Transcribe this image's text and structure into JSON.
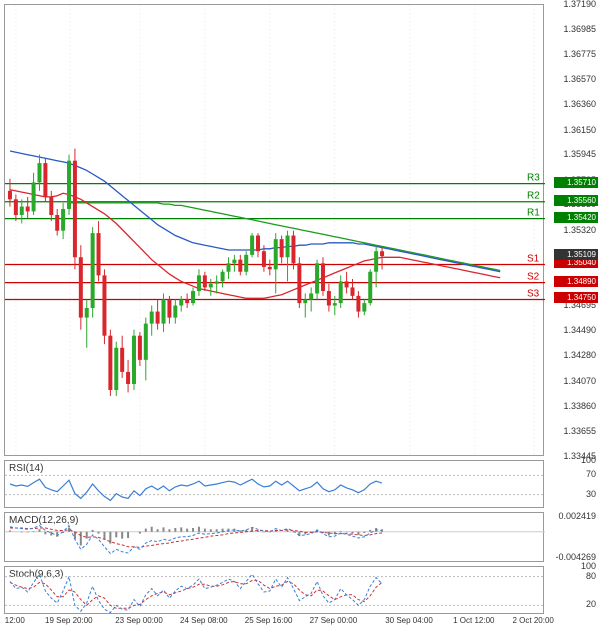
{
  "main": {
    "ylim": [
      1.33445,
      1.3719
    ],
    "yticks": [
      1.33445,
      1.33655,
      1.3386,
      1.3407,
      1.3428,
      1.3449,
      1.34695,
      1.34905,
      1.35115,
      1.3532,
      1.3553,
      1.35735,
      1.35945,
      1.3615,
      1.3636,
      1.3657,
      1.36775,
      1.36985,
      1.3719
    ],
    "last_price": 1.35109,
    "last_tag_color": "#333333",
    "pivots": {
      "R3": {
        "value": 1.3571,
        "color": "#008000"
      },
      "R2": {
        "value": 1.3556,
        "color": "#008000"
      },
      "R1": {
        "value": 1.3542,
        "color": "#008000"
      },
      "S1": {
        "value": 1.3504,
        "color": "#cc0000"
      },
      "S2": {
        "value": 1.3489,
        "color": "#cc0000"
      },
      "S3": {
        "value": 1.3475,
        "color": "#cc0000"
      }
    },
    "ma_red": [
      1.3566,
      1.3565,
      1.3564,
      1.3563,
      1.3562,
      1.3561,
      1.356,
      1.356,
      1.3561,
      1.3563,
      1.3562,
      1.356,
      1.3558,
      1.3555,
      1.3552,
      1.3549,
      1.3546,
      1.3542,
      1.3538,
      1.3533,
      1.3528,
      1.3523,
      1.3518,
      1.3513,
      1.3508,
      1.3504,
      1.35,
      1.3496,
      1.3493,
      1.349,
      1.3488,
      1.3486,
      1.3484,
      1.3483,
      1.3482,
      1.3481,
      1.348,
      1.3479,
      1.3478,
      1.3477,
      1.3476,
      1.3476,
      1.3476,
      1.3476,
      1.3477,
      1.3478,
      1.3479,
      1.3481,
      1.3483,
      1.3485,
      1.3487,
      1.3489,
      1.3491,
      1.3493,
      1.3495,
      1.3497,
      1.3499,
      1.3501,
      1.3503,
      1.3505,
      1.3507,
      1.3508,
      1.3509,
      1.351,
      1.351,
      1.351,
      1.351,
      1.3509,
      1.3508,
      1.3507,
      1.3506,
      1.3505,
      1.3504,
      1.3503,
      1.3502,
      1.3501,
      1.35,
      1.3499,
      1.3498,
      1.3497,
      1.3496,
      1.3495,
      1.3494,
      1.3493
    ],
    "ma_blue": [
      1.3598,
      1.3597,
      1.3596,
      1.3595,
      1.3594,
      1.3593,
      1.3592,
      1.3591,
      1.359,
      1.3589,
      1.3588,
      1.3586,
      1.3584,
      1.3582,
      1.3579,
      1.3576,
      1.3573,
      1.3569,
      1.3565,
      1.3561,
      1.3557,
      1.3553,
      1.3549,
      1.3545,
      1.3541,
      1.3537,
      1.3534,
      1.3531,
      1.3528,
      1.3526,
      1.3524,
      1.3522,
      1.3521,
      1.352,
      1.3519,
      1.3518,
      1.3517,
      1.3516,
      1.3516,
      1.3516,
      1.3516,
      1.3516,
      1.3516,
      1.3517,
      1.3517,
      1.3518,
      1.3518,
      1.3519,
      1.3519,
      1.352,
      1.352,
      1.3521,
      1.3521,
      1.3521,
      1.3522,
      1.3522,
      1.3522,
      1.3522,
      1.3522,
      1.3521,
      1.3521,
      1.352,
      1.3519,
      1.3518,
      1.3517,
      1.3516,
      1.3515,
      1.3514,
      1.3513,
      1.3512,
      1.3511,
      1.351,
      1.3509,
      1.3508,
      1.3507,
      1.3506,
      1.3505,
      1.3504,
      1.3503,
      1.3502,
      1.3501,
      1.35,
      1.3499,
      1.3498
    ],
    "ma_green": [
      1.3555,
      1.3555,
      1.3555,
      1.3555,
      1.3555,
      1.3555,
      1.3555,
      1.3555,
      1.3555,
      1.3555,
      1.3555,
      1.3555,
      1.3555,
      1.3555,
      1.3555,
      1.3555,
      1.3554,
      1.3554,
      1.3553,
      1.3553,
      1.3552,
      1.3551,
      1.355,
      1.3549,
      1.3548,
      1.3547,
      1.3546,
      1.3545,
      1.3544,
      1.3543,
      1.3542,
      1.3541,
      1.354,
      1.3539,
      1.3538,
      1.3537,
      1.3536,
      1.3535,
      1.3534,
      1.3533,
      1.3532,
      1.3531,
      1.353,
      1.3529,
      1.3528,
      1.3527,
      1.3526,
      1.3525,
      1.3524,
      1.3523,
      1.3522,
      1.3521,
      1.352,
      1.3519,
      1.3518,
      1.3517,
      1.3516,
      1.3515,
      1.3514,
      1.3513,
      1.3512,
      1.3511,
      1.351,
      1.3509,
      1.3508,
      1.3507,
      1.3506,
      1.3505,
      1.3504,
      1.3503,
      1.3502,
      1.3501,
      1.35,
      1.3499
    ],
    "candles": [
      {
        "o": 1.3565,
        "h": 1.3575,
        "l": 1.3552,
        "c": 1.3558,
        "up": false
      },
      {
        "o": 1.3558,
        "h": 1.3562,
        "l": 1.354,
        "c": 1.3545,
        "up": false
      },
      {
        "o": 1.3545,
        "h": 1.3558,
        "l": 1.3538,
        "c": 1.3552,
        "up": true
      },
      {
        "o": 1.3552,
        "h": 1.356,
        "l": 1.3542,
        "c": 1.3548,
        "up": false
      },
      {
        "o": 1.3548,
        "h": 1.358,
        "l": 1.3545,
        "c": 1.3572,
        "up": true
      },
      {
        "o": 1.3572,
        "h": 1.3595,
        "l": 1.3565,
        "c": 1.3588,
        "up": true
      },
      {
        "o": 1.3588,
        "h": 1.3592,
        "l": 1.3556,
        "c": 1.356,
        "up": false
      },
      {
        "o": 1.356,
        "h": 1.3565,
        "l": 1.354,
        "c": 1.3545,
        "up": false
      },
      {
        "o": 1.3545,
        "h": 1.355,
        "l": 1.3528,
        "c": 1.3532,
        "up": false
      },
      {
        "o": 1.3532,
        "h": 1.3555,
        "l": 1.3525,
        "c": 1.355,
        "up": true
      },
      {
        "o": 1.355,
        "h": 1.3595,
        "l": 1.3545,
        "c": 1.359,
        "up": true
      },
      {
        "o": 1.359,
        "h": 1.36,
        "l": 1.35,
        "c": 1.351,
        "up": false
      },
      {
        "o": 1.351,
        "h": 1.352,
        "l": 1.345,
        "c": 1.346,
        "up": false
      },
      {
        "o": 1.346,
        "h": 1.3475,
        "l": 1.3435,
        "c": 1.3468,
        "up": true
      },
      {
        "o": 1.3468,
        "h": 1.3535,
        "l": 1.346,
        "c": 1.353,
        "up": true
      },
      {
        "o": 1.353,
        "h": 1.354,
        "l": 1.349,
        "c": 1.3495,
        "up": false
      },
      {
        "o": 1.3495,
        "h": 1.35,
        "l": 1.3438,
        "c": 1.3445,
        "up": false
      },
      {
        "o": 1.3445,
        "h": 1.345,
        "l": 1.3395,
        "c": 1.34,
        "up": false
      },
      {
        "o": 1.34,
        "h": 1.344,
        "l": 1.3395,
        "c": 1.3435,
        "up": true
      },
      {
        "o": 1.3435,
        "h": 1.3445,
        "l": 1.341,
        "c": 1.3415,
        "up": false
      },
      {
        "o": 1.3415,
        "h": 1.3425,
        "l": 1.3398,
        "c": 1.3405,
        "up": false
      },
      {
        "o": 1.3405,
        "h": 1.345,
        "l": 1.34,
        "c": 1.3445,
        "up": true
      },
      {
        "o": 1.3445,
        "h": 1.3448,
        "l": 1.342,
        "c": 1.3425,
        "up": false
      },
      {
        "o": 1.3425,
        "h": 1.346,
        "l": 1.3408,
        "c": 1.3455,
        "up": true
      },
      {
        "o": 1.3455,
        "h": 1.347,
        "l": 1.3445,
        "c": 1.3465,
        "up": true
      },
      {
        "o": 1.3465,
        "h": 1.3475,
        "l": 1.345,
        "c": 1.3455,
        "up": false
      },
      {
        "o": 1.3455,
        "h": 1.348,
        "l": 1.3448,
        "c": 1.3475,
        "up": true
      },
      {
        "o": 1.3475,
        "h": 1.3478,
        "l": 1.3455,
        "c": 1.346,
        "up": false
      },
      {
        "o": 1.346,
        "h": 1.3475,
        "l": 1.3455,
        "c": 1.347,
        "up": true
      },
      {
        "o": 1.347,
        "h": 1.3478,
        "l": 1.3465,
        "c": 1.3475,
        "up": true
      },
      {
        "o": 1.3475,
        "h": 1.348,
        "l": 1.3468,
        "c": 1.3472,
        "up": false
      },
      {
        "o": 1.3472,
        "h": 1.3485,
        "l": 1.347,
        "c": 1.3482,
        "up": true
      },
      {
        "o": 1.3482,
        "h": 1.35,
        "l": 1.3478,
        "c": 1.3495,
        "up": true
      },
      {
        "o": 1.3495,
        "h": 1.3498,
        "l": 1.3482,
        "c": 1.3485,
        "up": false
      },
      {
        "o": 1.3485,
        "h": 1.3492,
        "l": 1.3478,
        "c": 1.3488,
        "up": true
      },
      {
        "o": 1.3488,
        "h": 1.3495,
        "l": 1.348,
        "c": 1.349,
        "up": true
      },
      {
        "o": 1.349,
        "h": 1.35,
        "l": 1.3485,
        "c": 1.3498,
        "up": true
      },
      {
        "o": 1.3498,
        "h": 1.351,
        "l": 1.3492,
        "c": 1.3505,
        "up": true
      },
      {
        "o": 1.3505,
        "h": 1.3512,
        "l": 1.3498,
        "c": 1.3508,
        "up": true
      },
      {
        "o": 1.3508,
        "h": 1.3512,
        "l": 1.3495,
        "c": 1.3498,
        "up": false
      },
      {
        "o": 1.3498,
        "h": 1.3515,
        "l": 1.3495,
        "c": 1.3512,
        "up": true
      },
      {
        "o": 1.3512,
        "h": 1.353,
        "l": 1.351,
        "c": 1.3528,
        "up": true
      },
      {
        "o": 1.3528,
        "h": 1.353,
        "l": 1.351,
        "c": 1.3515,
        "up": false
      },
      {
        "o": 1.3515,
        "h": 1.352,
        "l": 1.3498,
        "c": 1.3502,
        "up": false
      },
      {
        "o": 1.3502,
        "h": 1.3508,
        "l": 1.3495,
        "c": 1.35,
        "up": false
      },
      {
        "o": 1.35,
        "h": 1.353,
        "l": 1.348,
        "c": 1.3525,
        "up": true
      },
      {
        "o": 1.3525,
        "h": 1.3528,
        "l": 1.3505,
        "c": 1.351,
        "up": false
      },
      {
        "o": 1.351,
        "h": 1.3532,
        "l": 1.349,
        "c": 1.3528,
        "up": true
      },
      {
        "o": 1.3528,
        "h": 1.3532,
        "l": 1.35,
        "c": 1.3505,
        "up": false
      },
      {
        "o": 1.3505,
        "h": 1.351,
        "l": 1.3468,
        "c": 1.3472,
        "up": false
      },
      {
        "o": 1.3472,
        "h": 1.348,
        "l": 1.346,
        "c": 1.3475,
        "up": true
      },
      {
        "o": 1.3475,
        "h": 1.3485,
        "l": 1.3465,
        "c": 1.348,
        "up": true
      },
      {
        "o": 1.348,
        "h": 1.3508,
        "l": 1.3475,
        "c": 1.3505,
        "up": true
      },
      {
        "o": 1.3505,
        "h": 1.351,
        "l": 1.3478,
        "c": 1.3482,
        "up": false
      },
      {
        "o": 1.3482,
        "h": 1.3488,
        "l": 1.3465,
        "c": 1.347,
        "up": false
      },
      {
        "o": 1.347,
        "h": 1.3478,
        "l": 1.3462,
        "c": 1.3472,
        "up": true
      },
      {
        "o": 1.3472,
        "h": 1.3495,
        "l": 1.3468,
        "c": 1.349,
        "up": true
      },
      {
        "o": 1.349,
        "h": 1.3498,
        "l": 1.348,
        "c": 1.3485,
        "up": false
      },
      {
        "o": 1.3485,
        "h": 1.3492,
        "l": 1.3475,
        "c": 1.3478,
        "up": false
      },
      {
        "o": 1.3478,
        "h": 1.3482,
        "l": 1.346,
        "c": 1.3465,
        "up": false
      },
      {
        "o": 1.3465,
        "h": 1.3475,
        "l": 1.3462,
        "c": 1.3472,
        "up": true
      },
      {
        "o": 1.3472,
        "h": 1.35,
        "l": 1.347,
        "c": 1.3498,
        "up": true
      },
      {
        "o": 1.3498,
        "h": 1.352,
        "l": 1.3485,
        "c": 1.3515,
        "up": true
      },
      {
        "o": 1.3515,
        "h": 1.3518,
        "l": 1.35,
        "c": 1.3511,
        "up": false
      }
    ]
  },
  "xaxis": {
    "labels": [
      "12:00",
      "19 Sep 20:00",
      "23 Sep 00:00",
      "24 Sep 08:00",
      "25 Sep 16:00",
      "27 Sep 00:00",
      "30 Sep 04:00",
      "1 Oct 12:00",
      "2 Oct 20:00"
    ],
    "positions": [
      0.02,
      0.12,
      0.25,
      0.37,
      0.49,
      0.61,
      0.75,
      0.87,
      0.98
    ]
  },
  "rsi": {
    "label": "RSI(14)",
    "ylim": [
      0,
      100
    ],
    "yticks": [
      30,
      70,
      100
    ],
    "line_color": "#3a7fd5",
    "data": [
      52,
      48,
      50,
      47,
      55,
      62,
      45,
      40,
      36,
      48,
      60,
      32,
      22,
      35,
      52,
      38,
      26,
      18,
      32,
      25,
      22,
      38,
      28,
      42,
      48,
      40,
      48,
      38,
      46,
      50,
      48,
      52,
      58,
      48,
      50,
      52,
      55,
      58,
      56,
      50,
      56,
      62,
      52,
      46,
      48,
      58,
      50,
      58,
      48,
      38,
      42,
      46,
      56,
      42,
      36,
      40,
      50,
      44,
      40,
      34,
      40,
      52,
      58,
      54
    ]
  },
  "macd": {
    "label": "MACD(12,26,9)",
    "ylim": [
      -0.005,
      0.003
    ],
    "yticks": [
      -0.004269,
      0.002419
    ],
    "macd_color": "#3a7fd5",
    "signal_color": "#cc3333",
    "hist_color": "#888888",
    "macd": [
      0.0008,
      0.0006,
      0.0005,
      0.0004,
      0.0006,
      0.001,
      0.0002,
      -0.0002,
      -0.0006,
      0.0,
      0.001,
      -0.0012,
      -0.0028,
      -0.002,
      -0.0005,
      -0.0012,
      -0.0024,
      -0.0035,
      -0.0028,
      -0.0032,
      -0.0034,
      -0.0024,
      -0.0028,
      -0.0018,
      -0.0014,
      -0.0016,
      -0.0012,
      -0.0014,
      -0.001,
      -0.0008,
      -0.0008,
      -0.0006,
      -0.0002,
      -0.0004,
      -0.0003,
      -0.0002,
      0.0,
      0.0002,
      0.0003,
      0.0001,
      0.0003,
      0.0007,
      0.0004,
      0.0001,
      0.0,
      0.0005,
      0.0002,
      0.0005,
      0.0001,
      -0.0006,
      -0.0005,
      -0.0003,
      0.0003,
      -0.0003,
      -0.0008,
      -0.0007,
      -0.0002,
      -0.0004,
      -0.0007,
      -0.001,
      -0.0008,
      -0.0002,
      0.0003,
      0.0002
    ],
    "signal": [
      0.0006,
      0.0006,
      0.0006,
      0.0005,
      0.0005,
      0.0006,
      0.0006,
      0.0004,
      0.0002,
      0.0002,
      0.0003,
      0.0,
      -0.0006,
      -0.0009,
      -0.0008,
      -0.0009,
      -0.0012,
      -0.0016,
      -0.0019,
      -0.0021,
      -0.0024,
      -0.0024,
      -0.0025,
      -0.0023,
      -0.0022,
      -0.002,
      -0.0019,
      -0.0018,
      -0.0016,
      -0.0015,
      -0.0013,
      -0.0012,
      -0.001,
      -0.0009,
      -0.0007,
      -0.0006,
      -0.0005,
      -0.0003,
      -0.0002,
      -0.0001,
      0.0,
      0.0001,
      0.0002,
      0.0002,
      0.0001,
      0.0002,
      0.0002,
      0.0003,
      0.0002,
      0.0001,
      -0.0001,
      -0.0001,
      0.0,
      -0.0001,
      -0.0002,
      -0.0003,
      -0.0003,
      -0.0003,
      -0.0004,
      -0.0005,
      -0.0006,
      -0.0005,
      -0.0003,
      -0.0002
    ]
  },
  "stoch": {
    "label": "Stoch(9,6,3)",
    "ylim": [
      0,
      100
    ],
    "yticks": [
      20,
      80,
      100
    ],
    "k_color": "#3a7fd5",
    "d_color": "#cc3333",
    "k": [
      70,
      55,
      58,
      48,
      68,
      85,
      50,
      35,
      25,
      50,
      80,
      20,
      8,
      25,
      60,
      30,
      12,
      5,
      20,
      12,
      10,
      32,
      18,
      42,
      55,
      40,
      52,
      35,
      50,
      60,
      55,
      62,
      75,
      55,
      58,
      62,
      68,
      75,
      70,
      55,
      70,
      85,
      65,
      48,
      50,
      75,
      58,
      78,
      55,
      30,
      38,
      45,
      70,
      40,
      25,
      32,
      55,
      42,
      32,
      20,
      32,
      60,
      78,
      65
    ],
    "d": [
      68,
      62,
      58,
      55,
      58,
      68,
      65,
      52,
      38,
      38,
      52,
      48,
      32,
      20,
      32,
      40,
      35,
      20,
      14,
      14,
      14,
      20,
      22,
      32,
      40,
      45,
      48,
      42,
      46,
      50,
      55,
      58,
      64,
      64,
      60,
      60,
      63,
      68,
      70,
      65,
      65,
      72,
      72,
      62,
      55,
      60,
      62,
      70,
      65,
      52,
      42,
      40,
      52,
      50,
      40,
      32,
      38,
      42,
      42,
      32,
      28,
      40,
      58,
      68
    ]
  },
  "colors": {
    "up": "#2aa82a",
    "down": "#d8262c",
    "grid": "#dddddd",
    "border": "#999999"
  }
}
